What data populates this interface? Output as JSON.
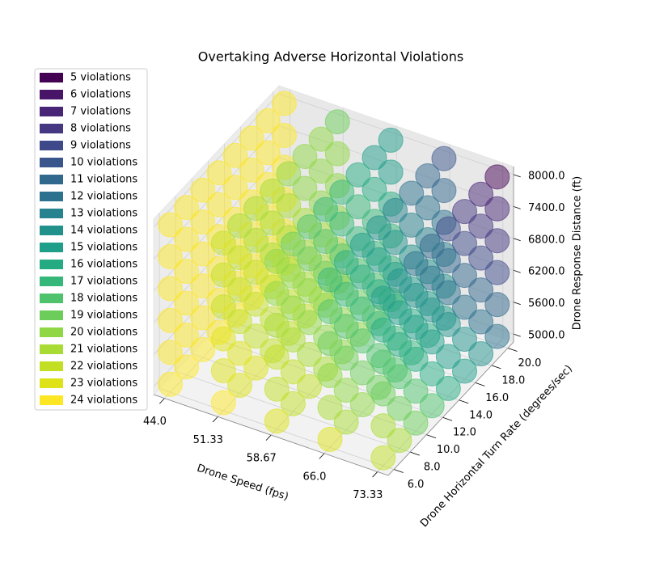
{
  "chart_data": {
    "type": "scatter3d",
    "title": "Overtaking Adverse Horizontal Violations",
    "xlabel": "Drone Speed (fps)",
    "ylabel": "Drone Horizontal Turn Rate (degrees/sec)",
    "zlabel": "Drone Response Distance (ft)",
    "x": [
      44,
      51.33,
      58.67,
      66,
      73.33
    ],
    "y": [
      6,
      8,
      10,
      12,
      14,
      16,
      18,
      20
    ],
    "z": [
      5000,
      5600,
      6200,
      6800,
      7400,
      8000
    ],
    "values": [
      [
        [
          24,
          24,
          24,
          24,
          24,
          24
        ],
        [
          24,
          24,
          24,
          24,
          24,
          24
        ],
        [
          24,
          24,
          24,
          24,
          24,
          24
        ],
        [
          24,
          24,
          24,
          24,
          24,
          24
        ],
        [
          24,
          24,
          24,
          24,
          24,
          24
        ],
        [
          24,
          24,
          24,
          24,
          24,
          24
        ],
        [
          24,
          24,
          24,
          24,
          24,
          24
        ],
        [
          24,
          24,
          24,
          24,
          24,
          24
        ]
      ],
      [
        [
          24,
          23,
          23,
          22,
          22,
          22
        ],
        [
          23,
          23,
          22,
          22,
          22,
          21
        ],
        [
          23,
          22,
          22,
          22,
          21,
          21
        ],
        [
          22,
          22,
          22,
          21,
          21,
          21
        ],
        [
          22,
          22,
          21,
          21,
          21,
          20
        ],
        [
          22,
          21,
          21,
          21,
          20,
          20
        ],
        [
          21,
          21,
          21,
          20,
          20,
          20
        ],
        [
          21,
          21,
          20,
          20,
          20,
          19
        ]
      ],
      [
        [
          23,
          22,
          22,
          21,
          20,
          20
        ],
        [
          22,
          22,
          21,
          20,
          20,
          19
        ],
        [
          22,
          21,
          20,
          20,
          19,
          18
        ],
        [
          21,
          20,
          20,
          19,
          18,
          17
        ],
        [
          20,
          20,
          19,
          18,
          17,
          17
        ],
        [
          20,
          19,
          18,
          17,
          17,
          16
        ],
        [
          19,
          18,
          17,
          17,
          16,
          15
        ],
        [
          18,
          17,
          17,
          16,
          15,
          15
        ]
      ],
      [
        [
          23,
          21,
          20,
          19,
          18,
          17
        ],
        [
          21,
          20,
          19,
          18,
          17,
          16
        ],
        [
          20,
          19,
          18,
          17,
          16,
          15
        ],
        [
          19,
          18,
          17,
          16,
          15,
          14
        ],
        [
          18,
          17,
          16,
          15,
          14,
          13
        ],
        [
          17,
          16,
          15,
          14,
          13,
          12
        ],
        [
          16,
          15,
          14,
          13,
          12,
          11
        ],
        [
          15,
          14,
          13,
          12,
          11,
          10
        ]
      ],
      [
        [
          22,
          21,
          19,
          18,
          16,
          15
        ],
        [
          21,
          19,
          18,
          16,
          15,
          14
        ],
        [
          19,
          18,
          16,
          15,
          14,
          12
        ],
        [
          18,
          16,
          15,
          14,
          12,
          11
        ],
        [
          16,
          15,
          14,
          12,
          11,
          9
        ],
        [
          15,
          14,
          12,
          11,
          9,
          8
        ],
        [
          14,
          12,
          11,
          9,
          8,
          7
        ],
        [
          12,
          11,
          9,
          8,
          7,
          5
        ]
      ]
    ],
    "xlim": [
      42.5,
      74.8
    ],
    "ylim": [
      5.3,
      20.7
    ],
    "zlim": [
      4850,
      8150
    ],
    "xticks": [
      {
        "value": 44,
        "label": "44.0"
      },
      51.33,
      58.67,
      {
        "value": 66,
        "label": "66.0"
      },
      73.33
    ],
    "yticks": [
      {
        "value": 6,
        "label": "6.0"
      },
      {
        "value": 8,
        "label": "8.0"
      },
      {
        "value": 10,
        "label": "10.0"
      },
      {
        "value": 12,
        "label": "12.0"
      },
      {
        "value": 14,
        "label": "14.0"
      },
      {
        "value": 16,
        "label": "16.0"
      },
      {
        "value": 18,
        "label": "18.0"
      },
      {
        "value": 20,
        "label": "20.0"
      }
    ],
    "zticks": [
      {
        "value": 5000,
        "label": "5000.0"
      },
      {
        "value": 5600,
        "label": "5600.0"
      },
      {
        "value": 6200,
        "label": "6200.0"
      },
      {
        "value": 6800,
        "label": "6800.0"
      },
      {
        "value": 7400,
        "label": "7400.0"
      },
      {
        "value": 8000,
        "label": "8000.0"
      }
    ],
    "grid": true,
    "legend_loc": "upper left",
    "legend": [
      {
        "value": 5,
        "label": "5 violations",
        "color": "#440154"
      },
      {
        "value": 6,
        "label": "6 violations",
        "color": "#481467"
      },
      {
        "value": 7,
        "label": "7 violations",
        "color": "#482576"
      },
      {
        "value": 8,
        "label": "8 violations",
        "color": "#453781"
      },
      {
        "value": 9,
        "label": "9 violations",
        "color": "#3e4989"
      },
      {
        "value": 10,
        "label": "10 violations",
        "color": "#39568c"
      },
      {
        "value": 11,
        "label": "11 violations",
        "color": "#31688e"
      },
      {
        "value": 12,
        "label": "12 violations",
        "color": "#2c728e"
      },
      {
        "value": 13,
        "label": "13 violations",
        "color": "#26828e"
      },
      {
        "value": 14,
        "label": "14 violations",
        "color": "#21918c"
      },
      {
        "value": 15,
        "label": "15 violations",
        "color": "#1f9e89"
      },
      {
        "value": 16,
        "label": "16 violations",
        "color": "#25ab82"
      },
      {
        "value": 17,
        "label": "17 violations",
        "color": "#35b779"
      },
      {
        "value": 18,
        "label": "18 violations",
        "color": "#4ec36b"
      },
      {
        "value": 19,
        "label": "19 violations",
        "color": "#6ccd5a"
      },
      {
        "value": 20,
        "label": "20 violations",
        "color": "#8fd744"
      },
      {
        "value": 21,
        "label": "21 violations",
        "color": "#a8db34"
      },
      {
        "value": 22,
        "label": "22 violations",
        "color": "#c2df23"
      },
      {
        "value": 23,
        "label": "23 violations",
        "color": "#dde318"
      },
      {
        "value": 24,
        "label": "24 violations",
        "color": "#fde725"
      }
    ]
  }
}
